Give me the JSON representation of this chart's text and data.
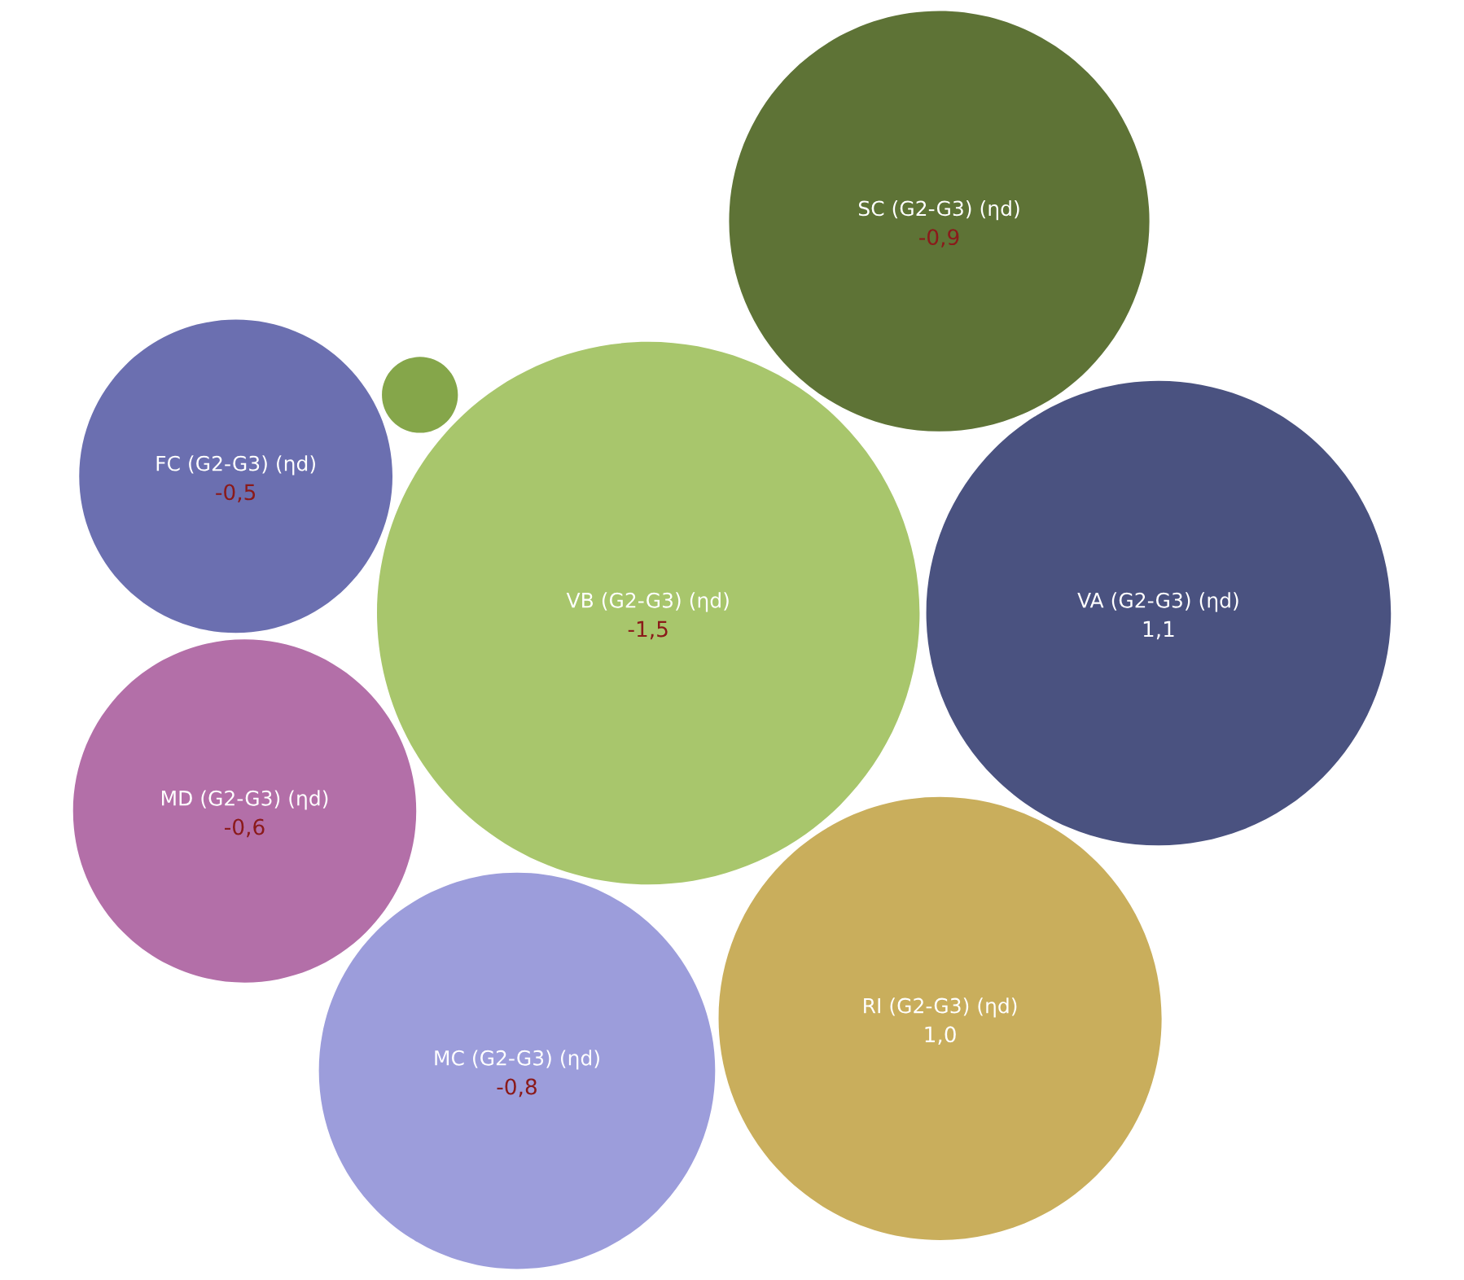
{
  "chart_data": {
    "type": "other",
    "categories": [
      "MD (G2-G3) (ηd)",
      "VB (G2-G3) (ηd)",
      "SC (G2-G3) (ηd)",
      "FC (G2-G3) (ηd)",
      "VA (G2-G3) (ηd)",
      "RI (G2-G3) (ηd)",
      "MC (G2-G3) (ηd)",
      null
    ],
    "values": [
      -0.6,
      -1.5,
      -0.9,
      -0.5,
      1.1,
      1.0,
      -0.8,
      null
    ],
    "value_labels": [
      "-0,6",
      "-1,5",
      "-0,9",
      "-0,5",
      "1,1",
      "1,0",
      "-0,8",
      null
    ],
    "colors": [
      "#b36fa8",
      "#a8c66c",
      "#5e7336",
      "#6b6fb0",
      "#4a5280",
      "#c9ae5c",
      "#9c9ddb",
      "#85a64a"
    ]
  }
}
